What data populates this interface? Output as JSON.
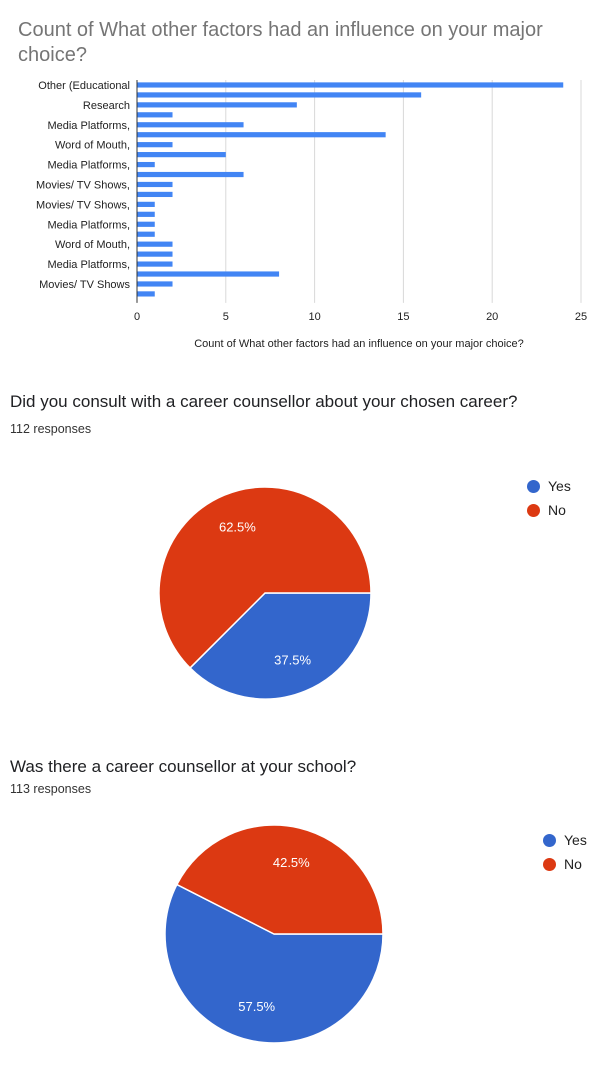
{
  "chart_data": [
    {
      "type": "bar",
      "orientation": "horizontal",
      "title": "Count of What other factors had an influence on your major choice?",
      "xlabel": "Count of What other factors had an influence on your major choice?",
      "ylabel": "",
      "xlim": [
        0,
        25
      ],
      "xticks": [
        0,
        5,
        10,
        15,
        20,
        25
      ],
      "grid": true,
      "color": "#4285f4",
      "categories": [
        "Other (Educational",
        "",
        "Research",
        "",
        "Media Platforms,",
        "",
        "Word of Mouth,",
        "",
        "Media Platforms,",
        "",
        "Movies/ TV Shows,",
        "",
        "Movies/ TV Shows,",
        "",
        "Media Platforms,",
        "",
        "Word of Mouth,",
        "",
        "Media Platforms,",
        "",
        "Movies/ TV Shows",
        ""
      ],
      "values": [
        24,
        16,
        9,
        2,
        6,
        14,
        2,
        5,
        1,
        6,
        2,
        2,
        1,
        1,
        1,
        1,
        2,
        2,
        2,
        8,
        2,
        1
      ]
    },
    {
      "type": "pie",
      "title": "Did you consult with a career counsellor about your chosen career?",
      "subtitle": "112 responses",
      "legend_position": "right",
      "slices": [
        {
          "label": "Yes",
          "value": 37.5,
          "display": "37.5%",
          "color": "#3366cc"
        },
        {
          "label": "No",
          "value": 62.5,
          "display": "62.5%",
          "color": "#dc3912"
        }
      ]
    },
    {
      "type": "pie",
      "title": "Was there a career counsellor at your school?",
      "subtitle": "113 responses",
      "legend_position": "right",
      "slices": [
        {
          "label": "Yes",
          "value": 57.5,
          "display": "57.5%",
          "color": "#3366cc"
        },
        {
          "label": "No",
          "value": 42.5,
          "display": "42.5%",
          "color": "#dc3912"
        }
      ]
    }
  ]
}
